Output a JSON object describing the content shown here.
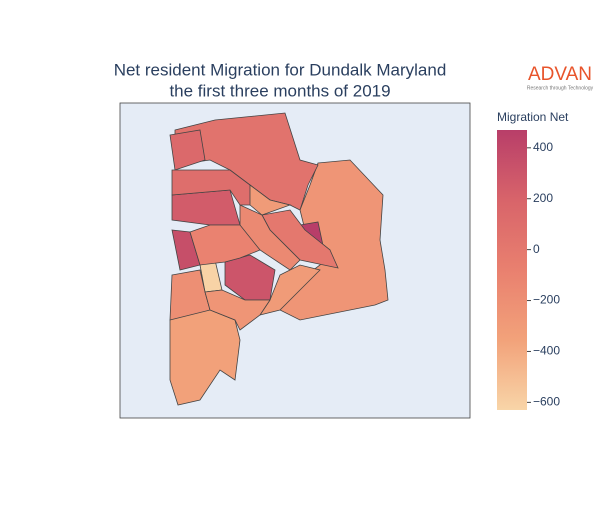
{
  "chart_data": {
    "type": "choropleth",
    "title": [
      "Net resident Migration for Dundalk Maryland",
      "the first three months of 2019"
    ],
    "colorbar_title": "Migration Net",
    "values": [
      -250,
      50,
      150,
      250,
      100,
      470,
      0,
      -150,
      300,
      -300,
      -620,
      350,
      -200,
      -350,
      -250,
      -100,
      -300
    ],
    "zlim": [
      -630,
      470
    ],
    "colorscale": [
      "#f8d5a8",
      "#f2a27a",
      "#e9806f",
      "#d8646a",
      "#b83e69"
    ],
    "ticks": [
      {
        "value": 400,
        "label": "400"
      },
      {
        "value": 200,
        "label": "200"
      },
      {
        "value": 0,
        "label": "0"
      },
      {
        "value": -200,
        "label": "−200"
      },
      {
        "value": -400,
        "label": "−400"
      },
      {
        "value": -600,
        "label": "−600"
      }
    ]
  },
  "logo": {
    "text": "ADVAN",
    "tagline": "Research through Technology"
  }
}
